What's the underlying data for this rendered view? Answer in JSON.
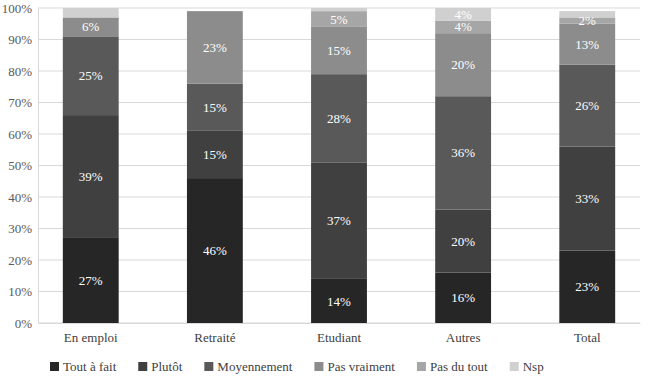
{
  "chart_data": {
    "type": "bar",
    "stacked": true,
    "orientation": "vertical",
    "grid": true,
    "legend": "bottom",
    "data_labels": true,
    "categories": [
      "En emploi",
      "Retraité",
      "Etudiant",
      "Autres",
      "Total"
    ],
    "ylim": [
      0,
      100
    ],
    "yticks": [
      {
        "value": 0,
        "label": "0%"
      },
      {
        "value": 10,
        "label": "10%"
      },
      {
        "value": 20,
        "label": "20%"
      },
      {
        "value": 30,
        "label": "30%"
      },
      {
        "value": 40,
        "label": "40%"
      },
      {
        "value": 50,
        "label": "50%"
      },
      {
        "value": 60,
        "label": "60%"
      },
      {
        "value": 70,
        "label": "70%"
      },
      {
        "value": 80,
        "label": "80%"
      },
      {
        "value": 90,
        "label": "90%"
      },
      {
        "value": 100,
        "label": "100%"
      }
    ],
    "series": [
      {
        "name": "Tout à fait",
        "color": "#262626",
        "values": [
          27,
          46,
          14,
          16,
          23
        ],
        "value_labels": [
          "27%",
          "46%",
          "14%",
          "16%",
          "23%"
        ]
      },
      {
        "name": "Plutôt",
        "color": "#404040",
        "values": [
          39,
          15,
          37,
          20,
          33
        ],
        "value_labels": [
          "39%",
          "15%",
          "37%",
          "20%",
          "33%"
        ]
      },
      {
        "name": "Moyennement",
        "color": "#595959",
        "values": [
          25,
          15,
          28,
          36,
          26
        ],
        "value_labels": [
          "25%",
          "15%",
          "28%",
          "36%",
          "26%"
        ]
      },
      {
        "name": "Pas vraiment",
        "color": "#8c8c8c",
        "values": [
          6,
          23,
          15,
          20,
          13
        ],
        "value_labels": [
          "6%",
          "23%",
          "15%",
          "20%",
          "13%"
        ]
      },
      {
        "name": "Pas du tout",
        "color": "#a6a6a6",
        "values": [
          0,
          0,
          5,
          4,
          2
        ],
        "value_labels": [
          null,
          null,
          "5%",
          "4%",
          "2%"
        ]
      },
      {
        "name": "Nsp",
        "color": "#d0d0d0",
        "values": [
          3,
          0,
          1,
          4,
          2
        ],
        "value_labels": [
          null,
          null,
          null,
          "4%",
          null
        ]
      }
    ]
  }
}
